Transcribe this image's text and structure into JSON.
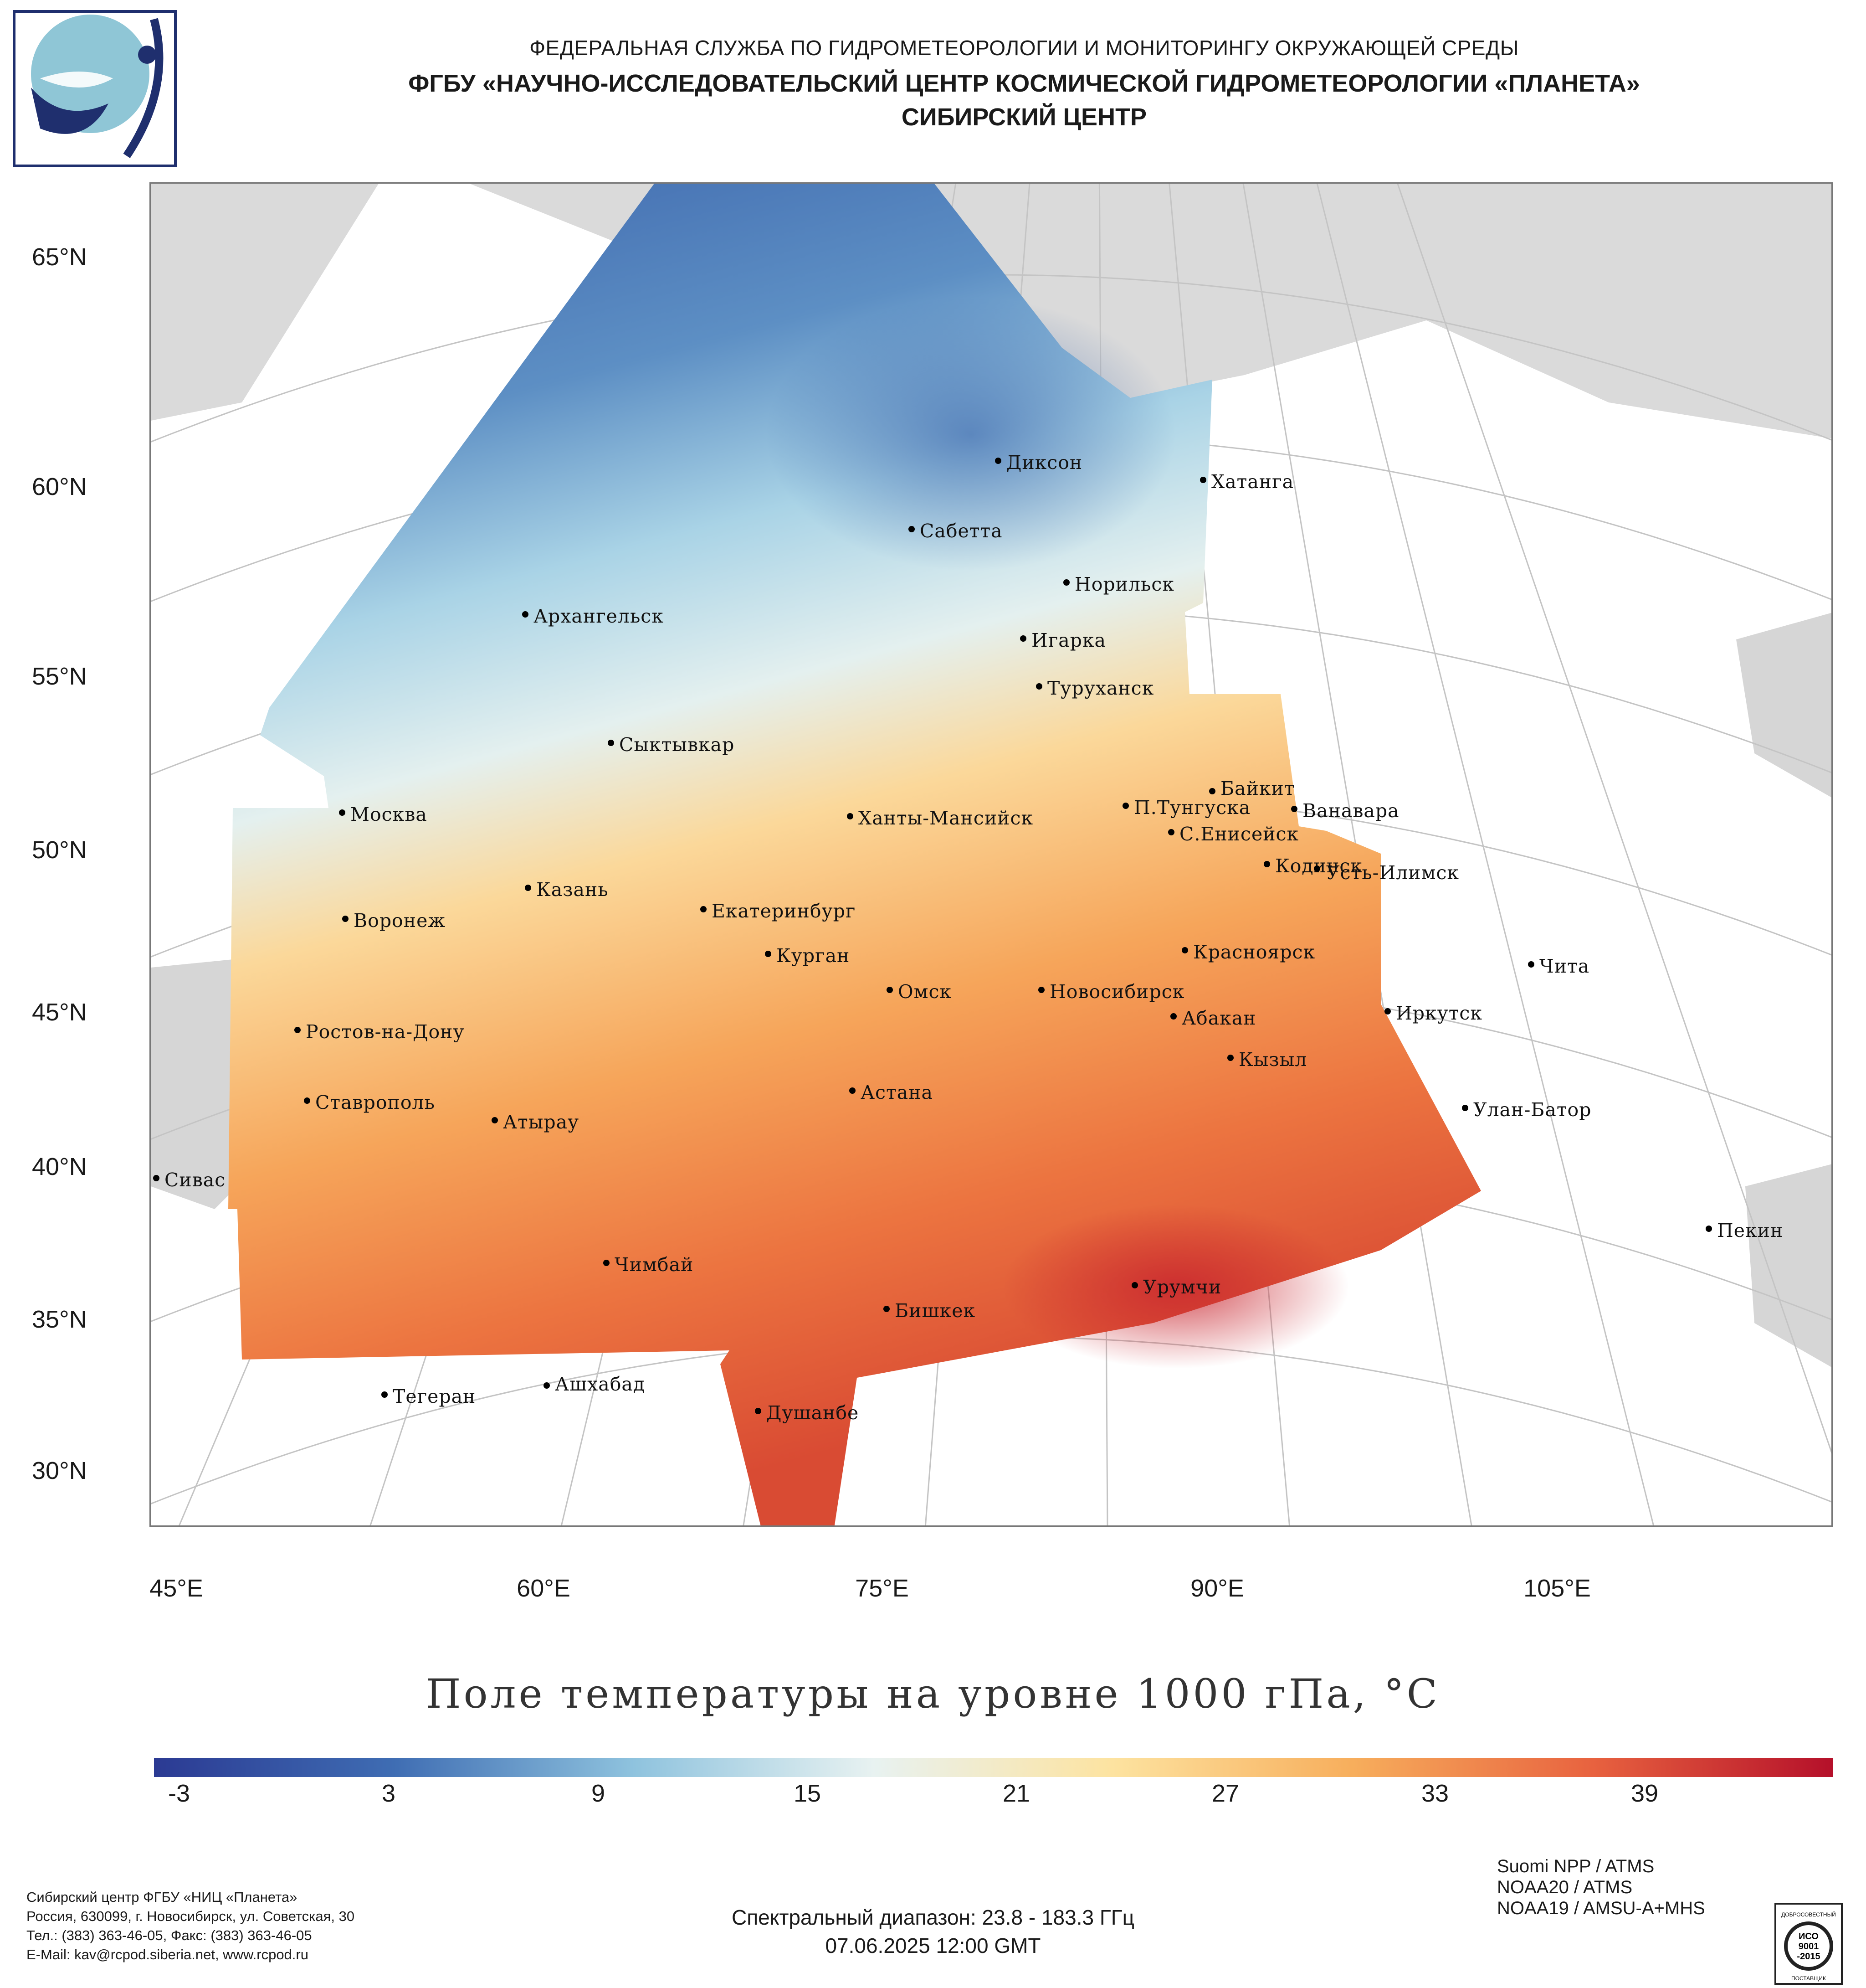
{
  "header": {
    "line1": "ФЕДЕРАЛЬНАЯ СЛУЖБА ПО ГИДРОМЕТЕОРОЛОГИИ И МОНИТОРИНГУ ОКРУЖАЮЩЕЙ СРЕДЫ",
    "line2": "ФГБУ «НАУЧНО-ИССЛЕДОВАТЕЛЬСКИЙ ЦЕНТР КОСМИЧЕСКОЙ ГИДРОМЕТЕОРОЛОГИИ «ПЛАНЕТА»",
    "line3": "СИБИРСКИЙ ЦЕНТР"
  },
  "map": {
    "lat_labels": [
      "65°N",
      "60°N",
      "55°N",
      "50°N",
      "45°N",
      "40°N",
      "35°N",
      "30°N"
    ],
    "lon_labels": [
      "45°E",
      "60°E",
      "75°E",
      "90°E",
      "105°E"
    ],
    "cities": [
      "Диксон",
      "Хатанга",
      "Сабетта",
      "Норильск",
      "Архангельск",
      "Игарка",
      "Туруханск",
      "Сыктывкар",
      "Байкит",
      "Москва",
      "Ханты-Мансийск",
      "П.Тунгуска",
      "Ванавара",
      "С.Енисейск",
      "Кодинск",
      "Усть-Илимск",
      "Казань",
      "Екатеринбург",
      "Воронеж",
      "Красноярск",
      "Курган",
      "Чита",
      "Омск",
      "Новосибирск",
      "Иркутск",
      "Абакан",
      "Ростов-на-Дону",
      "Кызыл",
      "Ставрополь",
      "Астана",
      "Улан-Батор",
      "Атырау",
      "Сивас",
      "Пекин",
      "Чимбай",
      "Урумчи",
      "Бишкек",
      "Ашхабад",
      "Тегеран",
      "Душанбе"
    ]
  },
  "legend": {
    "title": "Поле температуры на уровне 1000 гПа, °C",
    "ticks": [
      "-3",
      "3",
      "9",
      "15",
      "21",
      "27",
      "33",
      "39"
    ],
    "range_min": -6,
    "range_max": 42,
    "colors": [
      "#2b3a93",
      "#3f6db3",
      "#8fc3de",
      "#e8f2f1",
      "#fde3a0",
      "#f7ae5c",
      "#e8623f",
      "#b5102a"
    ]
  },
  "footer": {
    "org_lines": [
      "Сибирский центр ФГБУ «НИЦ «Планета»",
      "Россия, 630099, г. Новосибирск, ул. Советская, 30",
      "Тел.: (383) 363-46-05, Факс: (383) 363-46-05",
      "E-Mail: kav@rcpod.siberia.net, www.rcpod.ru"
    ],
    "spectral": "Спектральный диапазон: 23.8 - 183.3 ГГц",
    "datetime": "07.06.2025 12:00 GMT",
    "satellites": [
      "Suomi NPP / ATMS",
      "NOAA20 / ATMS",
      "NOAA19 / AMSU-A+MHS"
    ],
    "iso_text": [
      "ДОБРОСОВЕСТНЫЙ",
      "ИСО",
      "9001",
      "-2015",
      "ПОСТАВЩИК"
    ]
  }
}
